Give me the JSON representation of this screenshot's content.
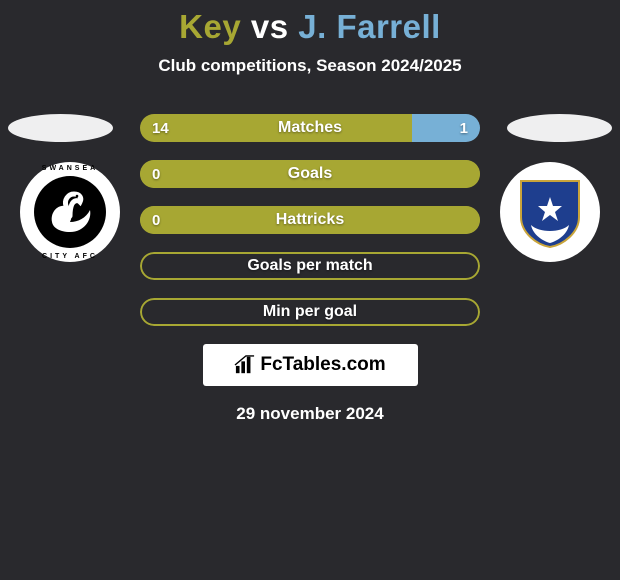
{
  "title_left": "Key",
  "title_vs": "vs",
  "title_right": "J. Farrell",
  "title_color_left": "#a7a733",
  "title_color_vs": "#ffffff",
  "title_color_right": "#77b0d6",
  "subtitle": "Club competitions, Season 2024/2025",
  "date": "29 november 2024",
  "brand": "FcTables.com",
  "colors": {
    "bg": "#29292d",
    "left": "#a7a733",
    "right": "#77b0d6",
    "border": "#a7a733",
    "neutral_fill": "#29292d",
    "ellipse": "#efeff0",
    "badge_bg": "#ffffff"
  },
  "bars": [
    {
      "label": "Matches",
      "left_value": "14",
      "right_value": "1",
      "left_pct": 80,
      "right_pct": 20,
      "fill_mode": "split",
      "show_values": true,
      "border": false
    },
    {
      "label": "Goals",
      "left_value": "0",
      "right_value": "",
      "left_pct": 100,
      "right_pct": 0,
      "fill_mode": "left_full",
      "show_values": "left_only",
      "border": true
    },
    {
      "label": "Hattricks",
      "left_value": "0",
      "right_value": "",
      "left_pct": 100,
      "right_pct": 0,
      "fill_mode": "left_full",
      "show_values": "left_only",
      "border": true
    },
    {
      "label": "Goals per match",
      "left_value": "",
      "right_value": "",
      "left_pct": 0,
      "right_pct": 0,
      "fill_mode": "empty",
      "show_values": false,
      "border": true
    },
    {
      "label": "Min per goal",
      "left_value": "",
      "right_value": "",
      "left_pct": 0,
      "right_pct": 0,
      "fill_mode": "empty",
      "show_values": false,
      "border": true
    }
  ]
}
